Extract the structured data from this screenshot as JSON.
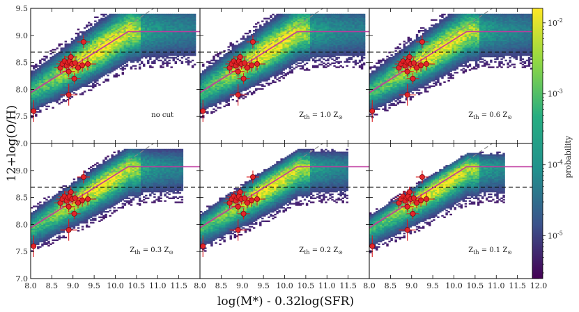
{
  "chart_data": {
    "type": "heatmap",
    "xlabel": "log(M*) - 0.32log(SFR)",
    "ylabel": "12+log(O/H)",
    "xlim": [
      8.0,
      12.0
    ],
    "ylim": [
      7.0,
      9.5
    ],
    "x_ticks": [
      "8.0",
      "8.5",
      "9.0",
      "9.5",
      "10.0",
      "10.5",
      "11.0",
      "11.5"
    ],
    "x_ticks_last": [
      "8.0",
      "8.5",
      "9.0",
      "9.5",
      "10.0",
      "10.5",
      "11.0",
      "11.5",
      "12.0"
    ],
    "y_ticks": [
      "7.0",
      "7.5",
      "8.0",
      "8.5",
      "9.0",
      "9.5"
    ],
    "y_ticks_lower": [
      "7.0",
      "7.5",
      "8.0",
      "8.5",
      "9.0"
    ],
    "colorbar": {
      "label": "probability",
      "scale": "log",
      "range": [
        2.5e-06,
        0.016
      ],
      "ticks": [
        {
          "value": 0.01,
          "label": "10^-2"
        },
        {
          "value": 0.001,
          "label": "10^-3"
        },
        {
          "value": 0.0001,
          "label": "10^-4"
        },
        {
          "value": 1e-05,
          "label": "10^-5"
        }
      ]
    },
    "reference_lines": {
      "dashed_horizontal_y": 8.69,
      "grey_dashed_slope_line": [
        [
          8.0,
          7.95
        ],
        [
          11.75,
          9.95
        ]
      ],
      "magenta_relation": [
        [
          8.0,
          7.94
        ],
        [
          10.3,
          9.07
        ],
        [
          12.0,
          9.07
        ]
      ]
    },
    "panels": [
      {
        "label": "no cut",
        "cut": null,
        "scatter_tail": 11.9
      },
      {
        "label": "Z_th = 1.0 Z_sun",
        "cut": "1.0",
        "scatter_tail": 11.9
      },
      {
        "label": "Z_th = 0.6 Z_sun",
        "cut": "0.6",
        "scatter_tail": 11.9
      },
      {
        "label": "Z_th = 0.3 Z_sun",
        "cut": "0.3",
        "scatter_tail": 11.6
      },
      {
        "label": "Z_th = 0.2 Z_sun",
        "cut": "0.2",
        "scatter_tail": 11.5
      },
      {
        "label": "Z_th = 0.1 Z_sun",
        "cut": "0.1",
        "scatter_tail": 11.2
      }
    ],
    "observations": [
      {
        "x": 8.07,
        "y": 7.6,
        "xerr": 0.05,
        "yerr": 0.2
      },
      {
        "x": 8.7,
        "y": 8.4,
        "xerr": 0.15,
        "yerr": 0.1
      },
      {
        "x": 8.75,
        "y": 8.47,
        "xerr": 0.15,
        "yerr": 0.1
      },
      {
        "x": 8.8,
        "y": 8.52,
        "xerr": 0.15,
        "yerr": 0.1
      },
      {
        "x": 8.85,
        "y": 8.44,
        "xerr": 0.15,
        "yerr": 0.1
      },
      {
        "x": 8.88,
        "y": 8.5,
        "xerr": 0.15,
        "yerr": 0.1
      },
      {
        "x": 8.9,
        "y": 8.33,
        "xerr": 0.15,
        "yerr": 0.1
      },
      {
        "x": 8.92,
        "y": 8.52,
        "xerr": 0.15,
        "yerr": 0.1
      },
      {
        "x": 8.95,
        "y": 8.6,
        "xerr": 0.15,
        "yerr": 0.1
      },
      {
        "x": 8.98,
        "y": 8.47,
        "xerr": 0.15,
        "yerr": 0.1
      },
      {
        "x": 9.03,
        "y": 8.2,
        "xerr": 0.15,
        "yerr": 0.1
      },
      {
        "x": 9.05,
        "y": 8.49,
        "xerr": 0.15,
        "yerr": 0.1
      },
      {
        "x": 9.12,
        "y": 8.4,
        "xerr": 0.15,
        "yerr": 0.1
      },
      {
        "x": 8.9,
        "y": 7.9,
        "xerr": 0.2,
        "yerr": 0.2
      },
      {
        "x": 9.22,
        "y": 8.45,
        "xerr": 0.18,
        "yerr": 0.12
      },
      {
        "x": 9.25,
        "y": 8.88,
        "xerr": 0.15,
        "yerr": 0.12
      },
      {
        "x": 9.35,
        "y": 8.47,
        "xerr": 0.2,
        "yerr": 0.12
      }
    ]
  }
}
